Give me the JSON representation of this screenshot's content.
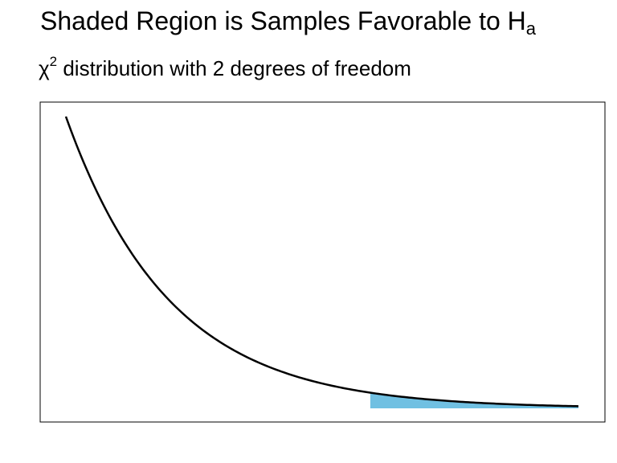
{
  "title": {
    "text": "Shaded Region is Samples Favorable to H",
    "subscript": "a"
  },
  "subtitle": {
    "symbol": "χ",
    "superscript": "2",
    "text": " distribution with 2 degrees of freedom"
  },
  "chart_data": {
    "type": "area",
    "title": "Shaded Region is Samples Favorable to Ha",
    "subtitle": "χ2 distribution with 2 degrees of freedom",
    "xlabel": "",
    "ylabel": "",
    "axes_visible": false,
    "grid": false,
    "curve": {
      "distribution": "chi-square",
      "df": 2,
      "xlim": [
        0.15,
        10.0
      ],
      "color": "#000000"
    },
    "shaded_region": {
      "from": 6.0,
      "to": 10.0,
      "color": "#70C0E2"
    }
  }
}
